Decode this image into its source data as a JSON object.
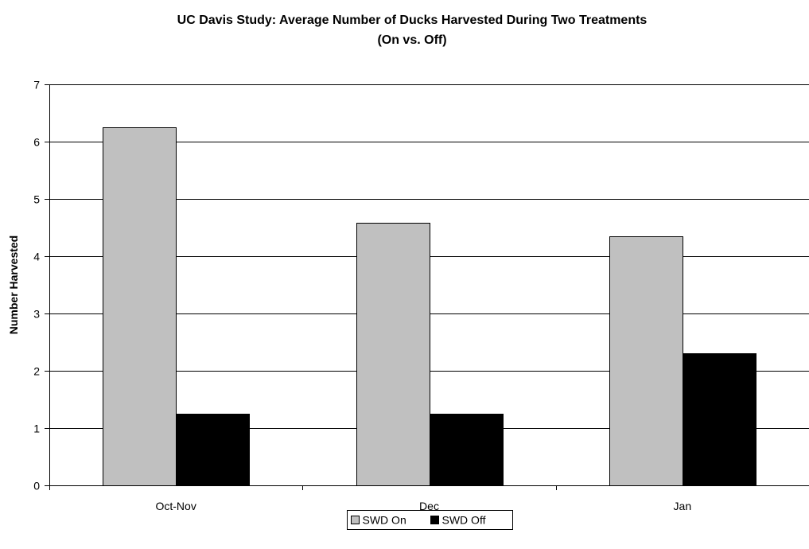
{
  "chart_data": {
    "type": "bar",
    "title": "UC Davis Study: Average Number of Ducks Harvested During Two Treatments",
    "subtitle": "(On vs. Off)",
    "xlabel": "",
    "ylabel": "Number Harvested",
    "ylim": [
      0,
      7
    ],
    "yticks": [
      "0",
      "1",
      "2",
      "3",
      "4",
      "5",
      "6",
      "7"
    ],
    "grid": true,
    "legend_position": "bottom",
    "categories": [
      "Oct-Nov",
      "Dec",
      "Jan"
    ],
    "series": [
      {
        "name": "SWD On",
        "color": "#c0c0c0",
        "values": [
          6.25,
          4.58,
          4.35
        ]
      },
      {
        "name": "SWD Off",
        "color": "#000000",
        "values": [
          1.25,
          1.25,
          2.3
        ]
      }
    ]
  }
}
